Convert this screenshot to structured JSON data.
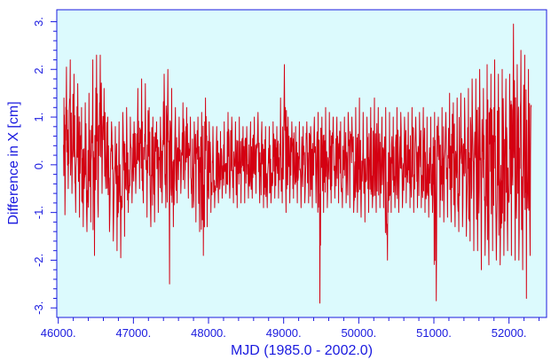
{
  "chart_data": {
    "type": "line",
    "title": "",
    "xlabel": "MJD (1985.0 - 2002.0)",
    "ylabel": "Difference in X [cm]",
    "xlim": [
      45980,
      52500
    ],
    "ylim": [
      -3.2,
      3.25
    ],
    "x_ticks": [
      46000,
      47000,
      48000,
      49000,
      50000,
      51000,
      52000
    ],
    "x_tick_labels": [
      "46000.",
      "47000.",
      "48000.",
      "49000.",
      "50000.",
      "51000.",
      "52000."
    ],
    "y_ticks": [
      -3,
      -2,
      -1,
      0,
      1,
      2,
      3
    ],
    "y_tick_labels": [
      "-3.",
      "-2.",
      "-1.",
      "0.",
      "1.",
      "2.",
      "3."
    ],
    "grid": false,
    "legend": "none",
    "colors": {
      "line": "#d40012",
      "plot_background": "#dcfafd",
      "axes": "#1a1adf"
    },
    "series": [
      {
        "x": [
          46070,
          46100,
          46150,
          46200,
          46250,
          46300,
          46350,
          46400,
          46450,
          46500,
          46550,
          46600,
          46650,
          46700,
          46750,
          46800,
          46850,
          46900,
          46950,
          47000,
          47050,
          47100,
          47150,
          47200,
          47250,
          47300,
          47350,
          47400,
          47450,
          47500,
          47550,
          47600,
          47650,
          47700,
          47750,
          47800,
          47850,
          47900,
          47950,
          48000,
          48050,
          48100,
          48150,
          48200,
          48250,
          48300,
          48350,
          48400,
          48450,
          48500,
          48550,
          48600,
          48650,
          48700,
          48750,
          48800,
          48850,
          48900,
          48950,
          49000,
          49050,
          49100,
          49150,
          49200,
          49250,
          49300,
          49350,
          49400,
          49450,
          49500,
          49550,
          49600,
          49650,
          49700,
          49750,
          49800,
          49850,
          49900,
          49950,
          50000,
          50050,
          50100,
          50150,
          50200,
          50250,
          50300,
          50350,
          50400,
          50450,
          50500,
          50550,
          50600,
          50650,
          50700,
          50750,
          50800,
          50850,
          50900,
          50950,
          51000,
          51050,
          51100,
          51150,
          51200,
          51250,
          51300,
          51350,
          51400,
          51450,
          51500,
          51550,
          51600,
          51650,
          51700,
          51750,
          51800,
          51850,
          51900,
          51950,
          52000,
          52050,
          52100,
          52150,
          52200,
          52250,
          52300
        ],
        "min": [
          -1.05,
          -0.5,
          -0.6,
          -1.0,
          -1.1,
          -1.3,
          -1.4,
          -1.2,
          -1.9,
          -1.1,
          -0.6,
          -0.5,
          -1.4,
          -1.6,
          -1.8,
          -1.95,
          -1.5,
          -1.0,
          -0.8,
          -0.6,
          -0.5,
          -0.8,
          -1.1,
          -1.3,
          -1.2,
          -1.0,
          -0.8,
          -0.9,
          -2.5,
          -1.3,
          -0.8,
          -0.6,
          -0.5,
          -0.7,
          -0.9,
          -1.2,
          -1.4,
          -1.9,
          -1.3,
          -1.0,
          -0.9,
          -0.8,
          -0.7,
          -0.6,
          -0.7,
          -0.8,
          -0.9,
          -0.8,
          -0.8,
          -0.7,
          -0.7,
          -0.6,
          -0.8,
          -0.9,
          -0.9,
          -0.8,
          -0.7,
          -0.7,
          -0.8,
          -1.0,
          -0.8,
          -0.7,
          -0.8,
          -0.9,
          -0.8,
          -0.8,
          -0.9,
          -0.8,
          -2.9,
          -1.0,
          -0.9,
          -0.8,
          -0.7,
          -0.8,
          -0.9,
          -0.8,
          -0.9,
          -1.0,
          -1.0,
          -1.1,
          -1.2,
          -1.0,
          -0.9,
          -1.0,
          -0.9,
          -0.9,
          -2.0,
          -1.0,
          -0.9,
          -1.0,
          -0.9,
          -0.8,
          -0.9,
          -1.0,
          -0.9,
          -0.9,
          -1.0,
          -1.1,
          -1.0,
          -2.85,
          -1.1,
          -1.2,
          -1.1,
          -1.2,
          -1.3,
          -1.4,
          -1.3,
          -1.5,
          -1.6,
          -1.8,
          -1.8,
          -2.2,
          -1.9,
          -2.1,
          -1.8,
          -2.0,
          -2.1,
          -1.9,
          -1.8,
          -1.9,
          -2.0,
          -2.0,
          -2.2,
          -2.8,
          -1.9,
          -1.2
        ],
        "max": [
          1.4,
          2.05,
          2.2,
          1.9,
          1.7,
          1.2,
          1.3,
          1.5,
          2.2,
          2.3,
          2.3,
          1.6,
          1.0,
          0.9,
          0.8,
          0.9,
          1.1,
          1.2,
          1.0,
          0.9,
          1.6,
          1.8,
          1.7,
          1.2,
          1.0,
          0.9,
          1.0,
          1.9,
          2.0,
          1.6,
          1.2,
          1.0,
          1.3,
          1.2,
          1.0,
          0.9,
          1.0,
          1.1,
          1.4,
          0.9,
          0.8,
          0.8,
          0.7,
          0.9,
          1.1,
          1.0,
          0.9,
          1.0,
          0.8,
          0.8,
          0.9,
          1.0,
          1.1,
          0.9,
          0.8,
          0.8,
          0.9,
          0.8,
          1.4,
          2.1,
          1.0,
          0.9,
          0.8,
          0.9,
          0.8,
          0.9,
          0.8,
          1.0,
          1.1,
          1.0,
          1.2,
          1.1,
          1.0,
          1.0,
          0.9,
          1.0,
          1.1,
          1.0,
          1.2,
          1.4,
          1.1,
          1.0,
          1.2,
          1.4,
          1.2,
          1.0,
          1.2,
          1.1,
          1.0,
          1.2,
          1.1,
          1.0,
          1.1,
          1.2,
          1.0,
          1.1,
          1.2,
          1.0,
          1.0,
          1.1,
          1.0,
          1.2,
          1.1,
          1.5,
          1.3,
          1.4,
          1.5,
          1.4,
          1.6,
          1.8,
          1.8,
          2.0,
          1.6,
          2.1,
          1.9,
          2.2,
          1.9,
          2.0,
          1.8,
          1.9,
          2.95,
          2.1,
          2.4,
          2.3,
          2.0,
          2.3
        ]
      }
    ]
  }
}
